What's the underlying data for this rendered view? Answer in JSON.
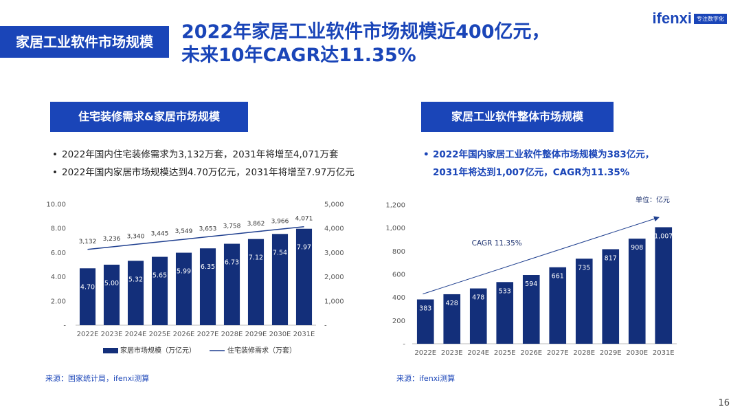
{
  "header": {
    "section_label": "家居工业软件市场规模",
    "headline_line1": "2022年家居工业软件市场规模近400亿元，",
    "headline_line2": "未来10年CAGR达11.35%",
    "logo_word": "ifenxi",
    "logo_tag": "专注数字化"
  },
  "left_panel": {
    "title": "住宅装修需求&家居市场规模",
    "bullets": [
      "2022年国内住宅装修需求为3,132万套，2031年将增至4,071万套",
      "2022年国内家居市场规模达到4.70万亿元，2031年将增至7.97万亿元"
    ],
    "source": "来源：国家统计局，ifenxi测算"
  },
  "right_panel": {
    "title": "家居工业软件整体市场规模",
    "bullets": [
      "2022年国内家居工业软件整体市场规模为383亿元，",
      "2031年将达到1,007亿元，CAGR为11.35%"
    ],
    "source": "来源：ifenxi测算"
  },
  "page_number": "16",
  "colors": {
    "brand": "#1a45b8",
    "bar": "#132f7a",
    "line": "#1f3f8f"
  },
  "chart_data": [
    {
      "type": "bar+line",
      "categories": [
        "2022E",
        "2023E",
        "2024E",
        "2025E",
        "2026E",
        "2027E",
        "2028E",
        "2029E",
        "2030E",
        "2031E"
      ],
      "series": [
        {
          "name": "家居市场规模（万亿元）",
          "kind": "bar",
          "axis": "left",
          "values": [
            4.7,
            5.0,
            5.32,
            5.65,
            5.99,
            6.35,
            6.73,
            7.12,
            7.54,
            7.97
          ],
          "labels": [
            "4.70",
            "5.00",
            "5.32",
            "5.65",
            "5.99",
            "6.35",
            "6.73",
            "7.12",
            "7.54",
            "7.97"
          ]
        },
        {
          "name": "住宅装修需求（万套）",
          "kind": "line",
          "axis": "right",
          "values": [
            3132,
            3236,
            3340,
            3445,
            3549,
            3653,
            3758,
            3862,
            3966,
            4071
          ],
          "labels": [
            "3,132",
            "3,236",
            "3,340",
            "3,445",
            "3,549",
            "3,653",
            "3,758",
            "3,862",
            "3,966",
            "4,071"
          ]
        }
      ],
      "ylim_left": [
        0,
        10
      ],
      "yticks_left": [
        "-",
        "2.00",
        "4.00",
        "6.00",
        "8.00",
        "10.00"
      ],
      "ylim_right": [
        0,
        5000
      ],
      "yticks_right": [
        "-",
        "1,000",
        "2,000",
        "3,000",
        "4,000",
        "5,000"
      ],
      "legend": [
        "家居市场规模（万亿元）",
        "住宅装修需求（万套）"
      ],
      "legend_position": "bottom"
    },
    {
      "type": "bar",
      "categories": [
        "2022E",
        "2023E",
        "2024E",
        "2025E",
        "2026E",
        "2027E",
        "2028E",
        "2029E",
        "2030E",
        "2031E"
      ],
      "values": [
        383,
        428,
        478,
        533,
        594,
        661,
        735,
        817,
        908,
        1007
      ],
      "labels": [
        "383",
        "428",
        "478",
        "533",
        "594",
        "661",
        "735",
        "817",
        "908",
        "1,007"
      ],
      "ylim": [
        0,
        1200
      ],
      "yticks": [
        "-",
        "200",
        "400",
        "600",
        "800",
        "1,000",
        "1,200"
      ],
      "unit_label": "单位：亿元",
      "annotation": "CAGR 11.35%"
    }
  ]
}
